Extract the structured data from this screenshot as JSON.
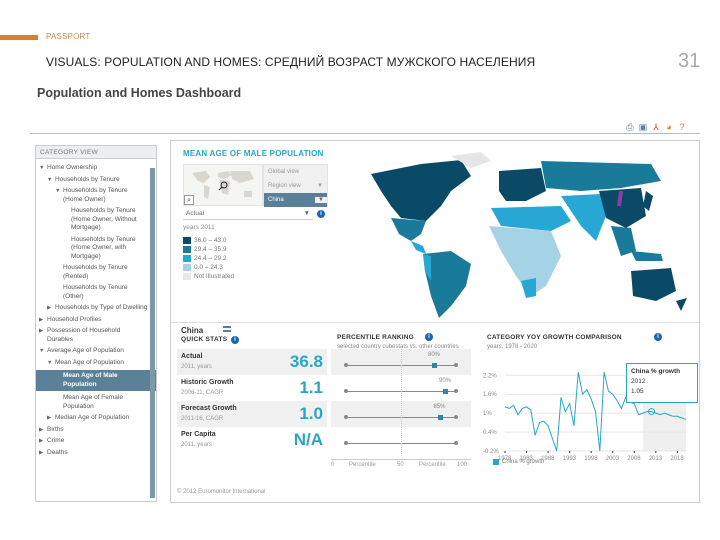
{
  "slide": {
    "brand": "PASSPORT",
    "title": "VISUALS: POPULATION AND HOMES: СРЕДНИЙ ВОЗРАСТ МУЖСКОГО НАСЕЛЕНИЯ",
    "page_number": "31",
    "accent_color": "#e07b2a"
  },
  "dashboard": {
    "title": "Population and Homes Dashboard",
    "toolbar": [
      {
        "name": "print-icon",
        "glyph": "⎙",
        "color": "#5a7f98"
      },
      {
        "name": "save-icon",
        "glyph": "▣",
        "color": "#5a7f98"
      },
      {
        "name": "pdf-icon",
        "glyph": "⅄",
        "color": "#d43a2a"
      },
      {
        "name": "chart-export-icon",
        "glyph": "◕",
        "color": "#e07b2a"
      },
      {
        "name": "help-icon",
        "glyph": "?",
        "color": "#e07b2a"
      }
    ]
  },
  "sidebar": {
    "header": "CATEGORY VIEW",
    "items": [
      {
        "label": "Home Ownership",
        "arrow": "▼",
        "indent": 0
      },
      {
        "label": "Households by Tenure",
        "arrow": "▼",
        "indent": 1
      },
      {
        "label": "Households by Tenure (Home Owner)",
        "arrow": "▼",
        "indent": 2
      },
      {
        "label": "Households by Tenure (Home Owner, Without Mortgage)",
        "arrow": "",
        "indent": 3
      },
      {
        "label": "Households by Tenure (Home Owner, with Mortgage)",
        "arrow": "",
        "indent": 3
      },
      {
        "label": "Households by Tenure (Rented)",
        "arrow": "",
        "indent": 2
      },
      {
        "label": "Households by Tenure (Other)",
        "arrow": "",
        "indent": 2
      },
      {
        "label": "Households by Type of Dwelling",
        "arrow": "▶",
        "indent": 1
      },
      {
        "label": "Household Profiles",
        "arrow": "▶",
        "indent": 0
      },
      {
        "label": "Possession of Household Durables",
        "arrow": "▶",
        "indent": 0
      },
      {
        "label": "Average Age of Population",
        "arrow": "▼",
        "indent": 0
      },
      {
        "label": "Mean Age of Population",
        "arrow": "▼",
        "indent": 1
      },
      {
        "label": "Mean Age of Male Population",
        "arrow": "",
        "indent": 2,
        "selected": true
      },
      {
        "label": "Mean Age of Female Population",
        "arrow": "",
        "indent": 2
      },
      {
        "label": "Median Age of Population",
        "arrow": "▶",
        "indent": 1
      },
      {
        "label": "Births",
        "arrow": "▶",
        "indent": 0
      },
      {
        "label": "Crime",
        "arrow": "▶",
        "indent": 0
      },
      {
        "label": "Deaths",
        "arrow": "▶",
        "indent": 0
      }
    ]
  },
  "map_panel": {
    "title": "MEAN AGE OF MALE POPULATION",
    "views": {
      "global": "Global view",
      "region": "Region view",
      "selected": "China"
    },
    "measure_dropdown": "Actual",
    "years_label": "years 2011",
    "legend": [
      {
        "label": "36.0 – 43.0",
        "color": "#0b4a66"
      },
      {
        "label": "29.4 – 35.9",
        "color": "#1a7a9a"
      },
      {
        "label": "24.4 – 29.2",
        "color": "#27a8d4"
      },
      {
        "label": "0.0 – 24.3",
        "color": "#a6d2e6"
      },
      {
        "label": "Not Illustrated",
        "color": "#e8e8e8"
      }
    ]
  },
  "quick_stats": {
    "country": "China",
    "title": "QUICK STATS",
    "rows": [
      {
        "label": "Actual",
        "sub": "2011, years",
        "value": "36.8"
      },
      {
        "label": "Historic Growth",
        "sub": "2006-11, CAGR",
        "value": "1.1"
      },
      {
        "label": "Forecast Growth",
        "sub": "2011-16, CAGR",
        "value": "1.0"
      },
      {
        "label": "Per Capita",
        "sub": "2011, years",
        "value": "N/A"
      }
    ]
  },
  "percentile": {
    "title": "PERCENTILE RANKING",
    "subtitle": "selected country cubestats vs. other countries",
    "rows": [
      {
        "pct_label": "80%",
        "pct": 80
      },
      {
        "pct_label": "90%",
        "pct": 90
      },
      {
        "pct_label": "85%",
        "pct": 85
      },
      {
        "pct_label": "",
        "pct": null
      }
    ],
    "axis": [
      "0",
      "Percentile",
      "50",
      "Percentile",
      "100"
    ]
  },
  "yoy": {
    "title": "CATEGORY YOY GROWTH COMPARISON",
    "subtitle": "years, 1978 - 2020",
    "legend": "China % growth",
    "tooltip": {
      "series": "China % growth",
      "year": "2012",
      "value": "1.05"
    }
  },
  "chart_data": {
    "type": "line",
    "title": "CATEGORY YOY GROWTH COMPARISON",
    "subtitle": "years, 1978 - 2020",
    "xlabel": "",
    "ylabel": "",
    "x_ticks": [
      "1978",
      "1983",
      "1988",
      "1993",
      "1998",
      "2003",
      "2008",
      "2013",
      "2018"
    ],
    "y_ticks": [
      "-0.2%",
      "0.4%",
      "1%",
      "1.6%",
      "2.2%"
    ],
    "ylim": [
      -0.2,
      2.4
    ],
    "series": [
      {
        "name": "China % growth",
        "color": "#2aa5c4",
        "x": [
          1978,
          1979,
          1980,
          1981,
          1982,
          1983,
          1984,
          1985,
          1986,
          1987,
          1988,
          1989,
          1990,
          1991,
          1992,
          1993,
          1994,
          1995,
          1996,
          1997,
          1998,
          1999,
          2000,
          2001,
          2002,
          2003,
          2004,
          2005,
          2006,
          2007,
          2008,
          2009,
          2010,
          2011,
          2012,
          2013,
          2014,
          2015,
          2016,
          2017,
          2018,
          2019,
          2020
        ],
        "values": [
          1.2,
          1.15,
          1.25,
          0.95,
          1.15,
          1.2,
          1.1,
          0.3,
          0.7,
          0.75,
          0.6,
          0.2,
          -0.2,
          1.5,
          1.05,
          1.3,
          0.6,
          2.3,
          1.6,
          1.75,
          1.45,
          1.05,
          -0.2,
          2.3,
          1.7,
          1.6,
          1.4,
          1.15,
          1.5,
          1.35,
          1.3,
          0.95,
          1.0,
          1.05,
          1.05,
          1.0,
          0.95,
          1.0,
          0.95,
          0.9,
          0.9,
          0.85,
          0.8
        ]
      }
    ],
    "highlight": {
      "x": 2012,
      "y": 1.05
    },
    "shaded_region": [
      2010,
      2020
    ],
    "legend_position": "bottom"
  },
  "footer": {
    "copyright": "© 2012 Euromonitor International"
  }
}
